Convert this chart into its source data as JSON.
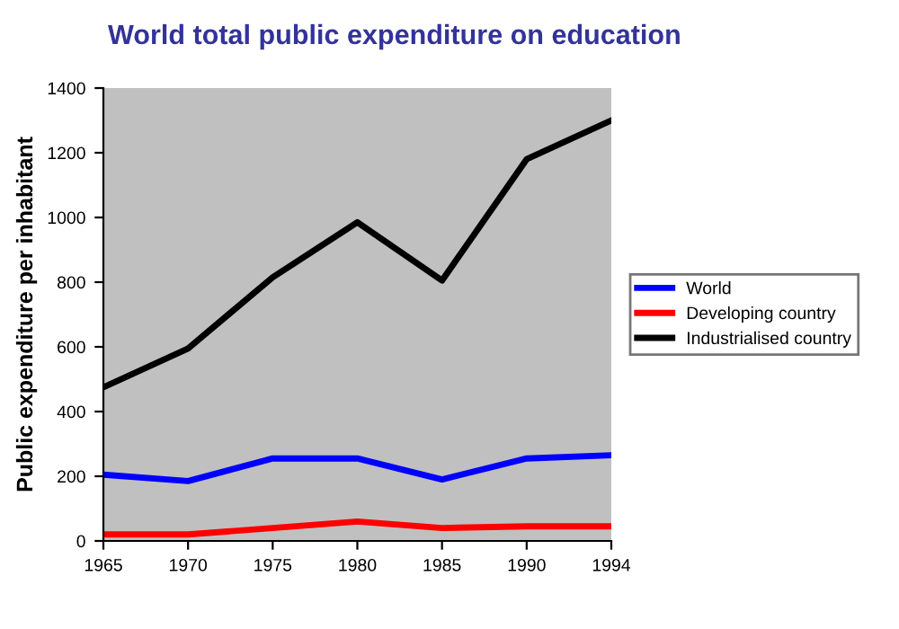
{
  "chart_data": {
    "type": "line",
    "title": "World total public expenditure on education",
    "ylabel": "Public expenditure per inhabitant",
    "categories": [
      "1965",
      "1970",
      "1975",
      "1980",
      "1985",
      "1990",
      "1994"
    ],
    "series": [
      {
        "name": "World",
        "color": "#0000ff",
        "values": [
          205,
          185,
          255,
          255,
          190,
          255,
          265
        ]
      },
      {
        "name": "Developing country",
        "color": "#ff0000",
        "values": [
          20,
          20,
          40,
          60,
          40,
          45,
          45
        ]
      },
      {
        "name": "Industrialised country",
        "color": "#000000",
        "values": [
          475,
          595,
          815,
          985,
          805,
          1180,
          1300
        ]
      }
    ],
    "ylim": [
      0,
      1400
    ],
    "yticks": [
      0,
      200,
      400,
      600,
      800,
      1000,
      1200,
      1400
    ],
    "grid": false,
    "legend": "right",
    "marker": "none",
    "line_style": "solid"
  }
}
